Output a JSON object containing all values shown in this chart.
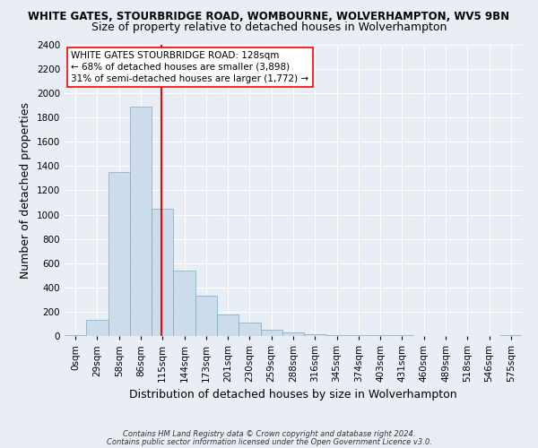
{
  "title_line1": "WHITE GATES, STOURBRIDGE ROAD, WOMBOURNE, WOLVERHAMPTON, WV5 9BN",
  "title_line2": "Size of property relative to detached houses in Wolverhampton",
  "xlabel": "Distribution of detached houses by size in Wolverhampton",
  "ylabel": "Number of detached properties",
  "categories": [
    "0sqm",
    "29sqm",
    "58sqm",
    "86sqm",
    "115sqm",
    "144sqm",
    "173sqm",
    "201sqm",
    "230sqm",
    "259sqm",
    "288sqm",
    "316sqm",
    "345sqm",
    "374sqm",
    "403sqm",
    "431sqm",
    "460sqm",
    "489sqm",
    "518sqm",
    "546sqm",
    "575sqm"
  ],
  "values": [
    10,
    130,
    1350,
    1890,
    1050,
    540,
    330,
    175,
    110,
    55,
    30,
    15,
    10,
    8,
    5,
    5,
    3,
    2,
    0,
    0,
    10
  ],
  "bar_color": "#ccdcec",
  "bar_edge_color": "#7aaabb",
  "annotation_text": "WHITE GATES STOURBRIDGE ROAD: 128sqm\n← 68% of detached houses are smaller (3,898)\n31% of semi-detached houses are larger (1,772) →",
  "ylim": [
    0,
    2400
  ],
  "yticks": [
    0,
    200,
    400,
    600,
    800,
    1000,
    1200,
    1400,
    1600,
    1800,
    2000,
    2200,
    2400
  ],
  "footnote1": "Contains HM Land Registry data © Crown copyright and database right 2024.",
  "footnote2": "Contains public sector information licensed under the Open Government Licence v3.0.",
  "background_color": "#e8eef4",
  "grid_color": "#ffffff",
  "title_fontsize": 8.5,
  "subtitle_fontsize": 9,
  "axis_label_fontsize": 9,
  "tick_fontsize": 7.5,
  "annotation_fontsize": 7.5,
  "footnote_fontsize": 6.0
}
